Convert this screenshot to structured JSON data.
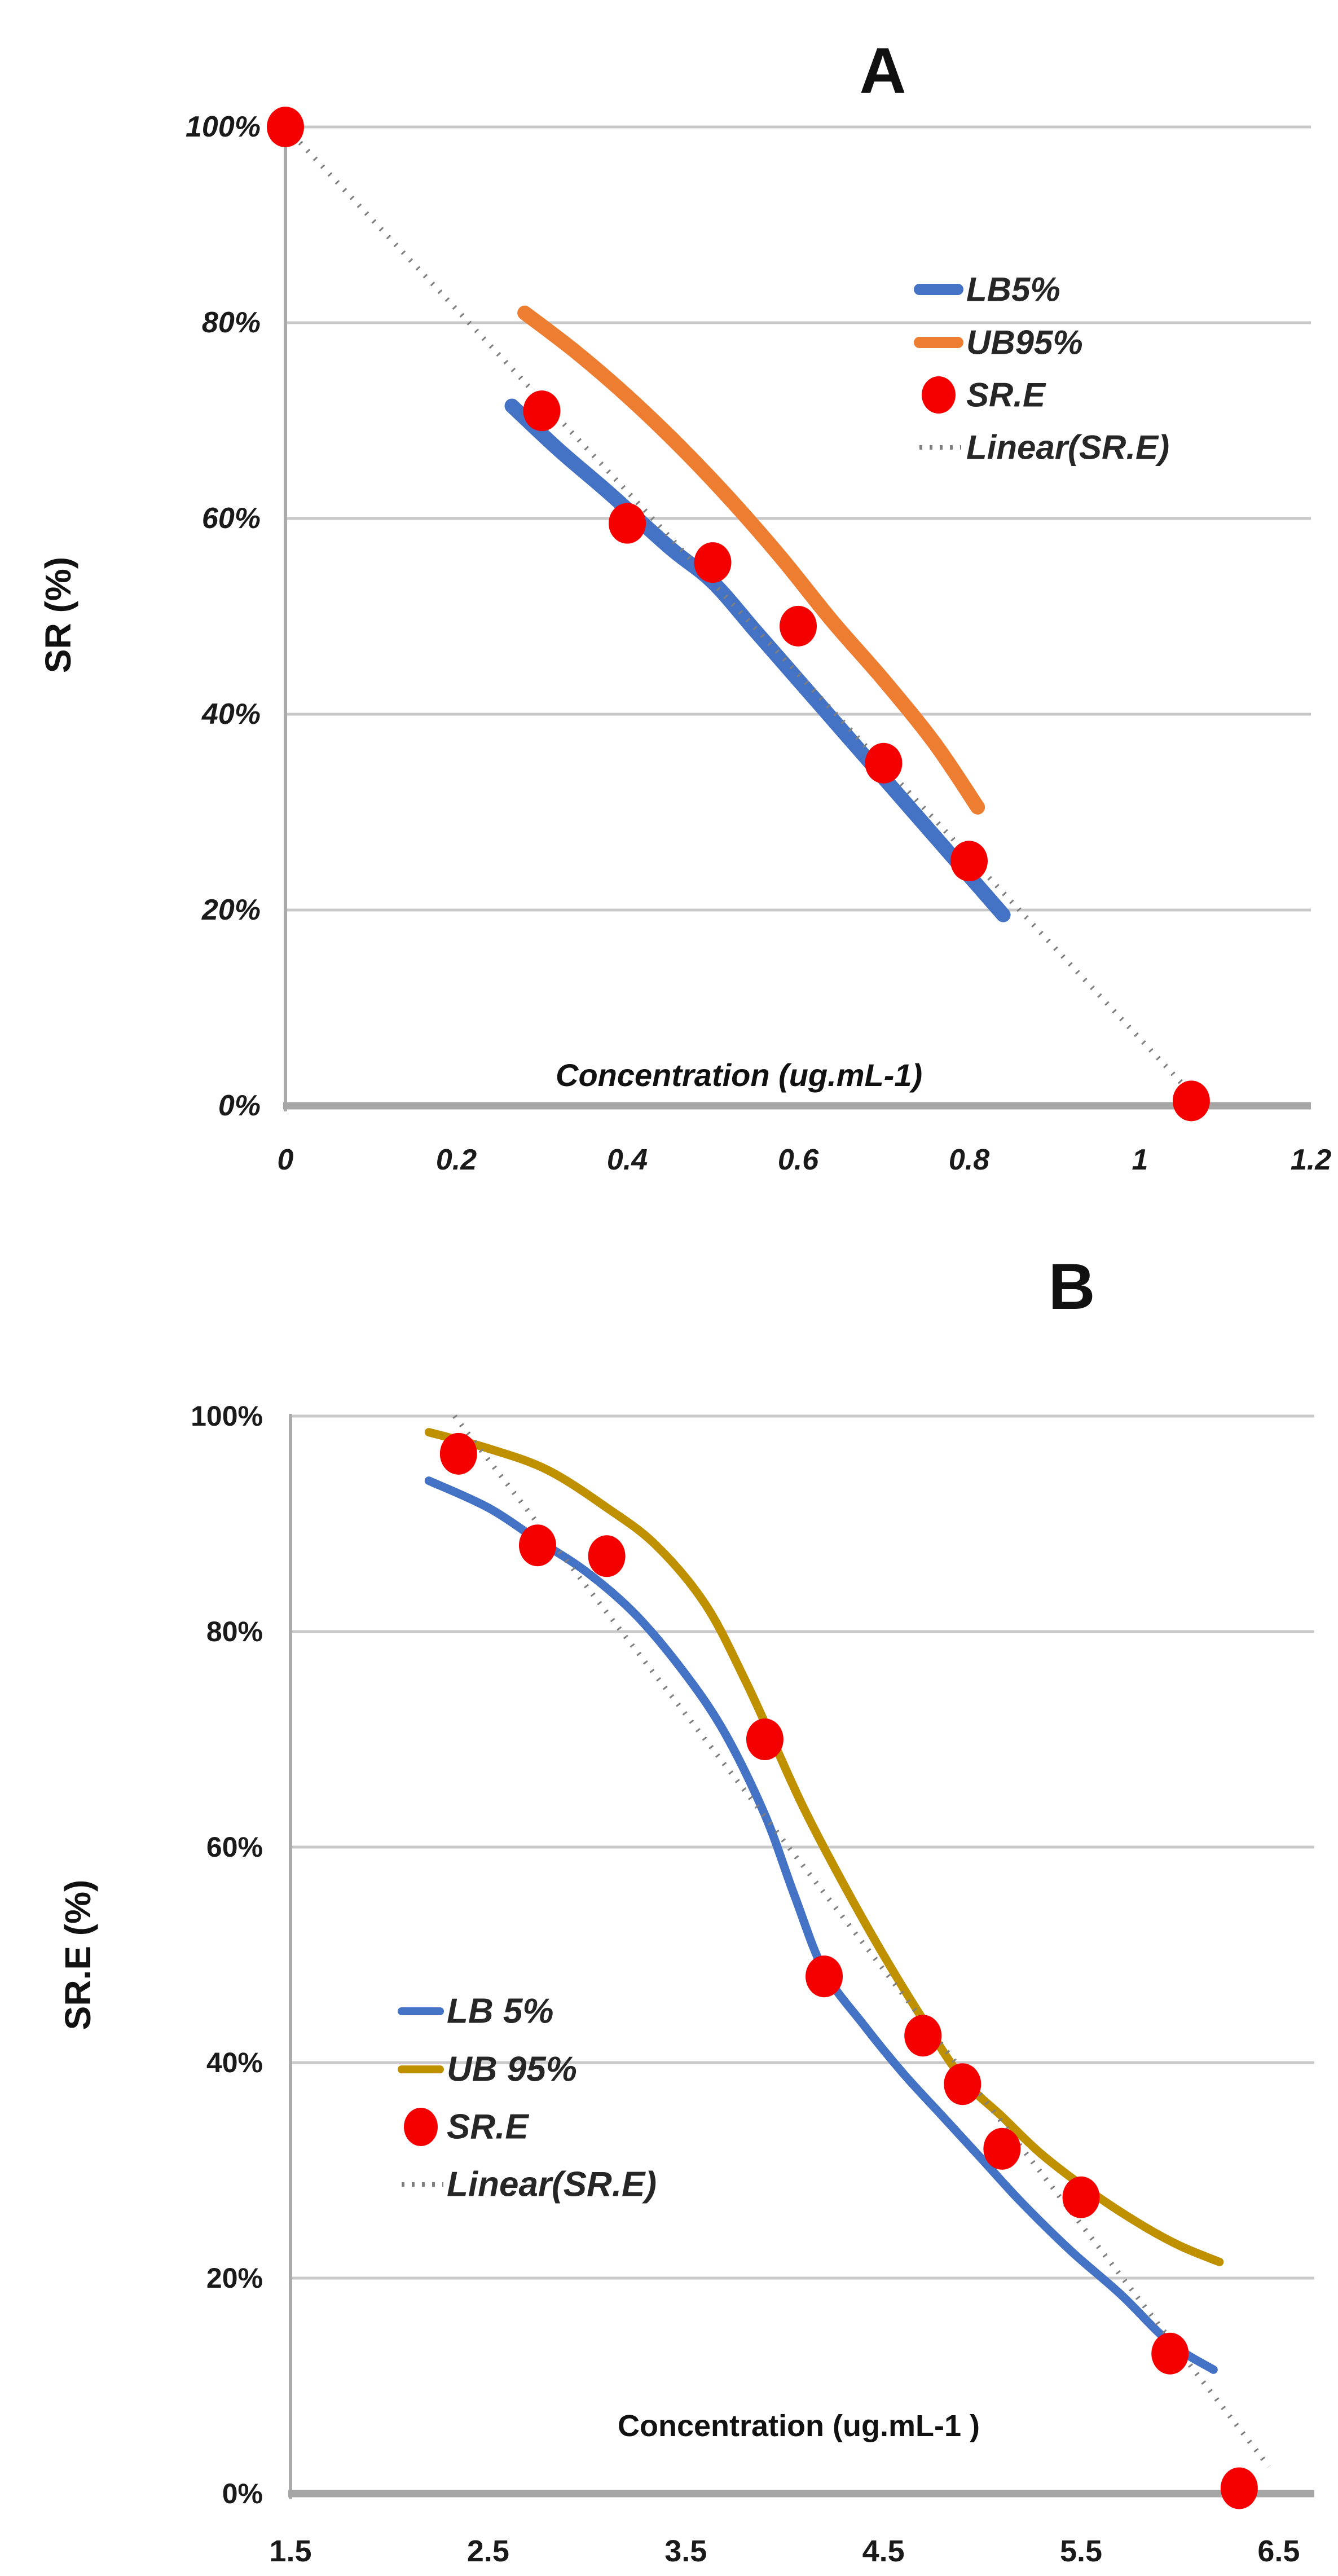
{
  "figure": {
    "description": "Two stacked survival-rate vs concentration charts",
    "background": "#ffffff"
  },
  "chart_data": [
    {
      "type": "line",
      "panel_label": "A",
      "title": "A",
      "xlabel": "Concentration (ug.mL-1)",
      "ylabel": "SR  (%)",
      "xlim": [
        0,
        1.2
      ],
      "ylim": [
        0,
        100
      ],
      "grid": "horizontal",
      "legend_position": "inside-upper-right",
      "x_tick_labels": [
        "0",
        "0.2",
        "0.4",
        "0.6",
        "0.8",
        "1",
        "1.2"
      ],
      "x_tick_values": [
        0,
        0.2,
        0.4,
        0.6,
        0.8,
        1,
        1.2
      ],
      "y_tick_labels": [
        "0%",
        "20%",
        "40%",
        "60%",
        "80%",
        "100%"
      ],
      "y_tick_values": [
        0,
        20,
        40,
        60,
        80,
        100
      ],
      "colors": {
        "lb": "#4472C4",
        "ub": "#ED7D31",
        "points": "#F50000",
        "trend": "#7F7F7F"
      },
      "legend": [
        {
          "label": "LB5%",
          "type": "line",
          "color": "#4472C4"
        },
        {
          "label": "UB95%",
          "type": "line",
          "color": "#ED7D31"
        },
        {
          "label": "SR.E",
          "type": "dot",
          "color": "#F50000"
        },
        {
          "label": "Linear(SR.E)",
          "type": "dotted",
          "color": "#7F7F7F"
        }
      ],
      "series": [
        {
          "name": "LB5%",
          "kind": "line",
          "color": "#4472C4",
          "points": [
            [
              0.265,
              71.5
            ],
            [
              0.32,
              67
            ],
            [
              0.38,
              62.5
            ],
            [
              0.45,
              57
            ],
            [
              0.5,
              53.5
            ],
            [
              0.55,
              48.5
            ],
            [
              0.6,
              43.5
            ],
            [
              0.65,
              38.5
            ],
            [
              0.7,
              33.5
            ],
            [
              0.75,
              28.5
            ],
            [
              0.8,
              23.5
            ],
            [
              0.84,
              19.5
            ]
          ]
        },
        {
          "name": "UB95%",
          "kind": "line",
          "color": "#ED7D31",
          "points": [
            [
              0.28,
              81
            ],
            [
              0.34,
              77
            ],
            [
              0.4,
              72.5
            ],
            [
              0.46,
              67.5
            ],
            [
              0.52,
              62
            ],
            [
              0.58,
              56
            ],
            [
              0.64,
              49.5
            ],
            [
              0.7,
              43.5
            ],
            [
              0.76,
              37
            ],
            [
              0.81,
              30.5
            ]
          ]
        },
        {
          "name": "Linear(SR.E)",
          "kind": "dotted",
          "color": "#7F7F7F",
          "points": [
            [
              0,
              100
            ],
            [
              1.065,
              0.8
            ]
          ]
        },
        {
          "name": "SR.E",
          "kind": "scatter",
          "color": "#F50000",
          "points": [
            [
              0,
              100
            ],
            [
              0.3,
              71
            ],
            [
              0.4,
              59.5
            ],
            [
              0.5,
              55.5
            ],
            [
              0.6,
              49
            ],
            [
              0.7,
              35
            ],
            [
              0.8,
              25
            ],
            [
              1.06,
              0.5
            ]
          ]
        }
      ]
    },
    {
      "type": "line",
      "panel_label": "B",
      "title": "B",
      "xlabel": "Concentration (ug.mL-1 )",
      "ylabel": "SR.E  (%)",
      "xlim": [
        1.5,
        6.68
      ],
      "ylim": [
        0,
        100
      ],
      "grid": "horizontal",
      "legend_position": "inside-middle-left",
      "x_tick_labels": [
        "1.5",
        "2.5",
        "3.5",
        "4.5",
        "5.5",
        "6.5"
      ],
      "x_tick_values": [
        1.5,
        2.5,
        3.5,
        4.5,
        5.5,
        6.5
      ],
      "y_tick_labels": [
        "0%",
        "20%",
        "40%",
        "60%",
        "80%",
        "100%"
      ],
      "y_tick_values": [
        0,
        20,
        40,
        60,
        80,
        100
      ],
      "colors": {
        "lb": "#4472C4",
        "ub": "#BF9000",
        "points": "#F50000",
        "trend": "#7F7F7F"
      },
      "legend": [
        {
          "label": "LB 5%",
          "type": "line",
          "color": "#4472C4"
        },
        {
          "label": "UB 95%",
          "type": "line",
          "color": "#BF9000"
        },
        {
          "label": "SR.E",
          "type": "dot",
          "color": "#F50000"
        },
        {
          "label": "Linear(SR.E)",
          "type": "dotted",
          "color": "#7F7F7F"
        }
      ],
      "series": [
        {
          "name": "LB 5%",
          "kind": "line",
          "color": "#4472C4",
          "points": [
            [
              2.2,
              94
            ],
            [
              2.5,
              91.5
            ],
            [
              2.75,
              88.5
            ],
            [
              3.0,
              85.5
            ],
            [
              3.25,
              81.5
            ],
            [
              3.5,
              76
            ],
            [
              3.7,
              70.5
            ],
            [
              3.9,
              63
            ],
            [
              4.05,
              55.5
            ],
            [
              4.2,
              48.5
            ],
            [
              4.4,
              43.5
            ],
            [
              4.6,
              39
            ],
            [
              4.8,
              35
            ],
            [
              5.0,
              31
            ],
            [
              5.2,
              27
            ],
            [
              5.45,
              22.5
            ],
            [
              5.7,
              18.5
            ],
            [
              5.95,
              14
            ],
            [
              6.17,
              11.5
            ]
          ]
        },
        {
          "name": "UB 95%",
          "kind": "line",
          "color": "#BF9000",
          "points": [
            [
              2.2,
              98.5
            ],
            [
              2.5,
              97
            ],
            [
              2.8,
              95
            ],
            [
              3.1,
              91.5
            ],
            [
              3.35,
              88
            ],
            [
              3.6,
              82.5
            ],
            [
              3.8,
              75.5
            ],
            [
              3.95,
              69.5
            ],
            [
              4.1,
              63.5
            ],
            [
              4.3,
              56.5
            ],
            [
              4.5,
              50
            ],
            [
              4.7,
              44
            ],
            [
              4.9,
              38.5
            ],
            [
              5.1,
              35
            ],
            [
              5.3,
              31.5
            ],
            [
              5.55,
              28
            ],
            [
              5.8,
              25
            ],
            [
              6.0,
              23
            ],
            [
              6.2,
              21.5
            ]
          ]
        },
        {
          "name": "Linear(SR.E)",
          "kind": "dotted",
          "color": "#7F7F7F",
          "points": [
            [
              2.33,
              100
            ],
            [
              6.45,
              2.5
            ]
          ]
        },
        {
          "name": "SR.E",
          "kind": "scatter",
          "color": "#F50000",
          "points": [
            [
              2.35,
              96.5
            ],
            [
              2.75,
              88
            ],
            [
              3.1,
              87
            ],
            [
              3.9,
              70
            ],
            [
              4.2,
              48
            ],
            [
              4.7,
              42.5
            ],
            [
              4.9,
              38
            ],
            [
              5.1,
              32
            ],
            [
              5.5,
              27.5
            ],
            [
              5.95,
              13
            ],
            [
              6.3,
              0.5
            ]
          ]
        }
      ]
    }
  ]
}
